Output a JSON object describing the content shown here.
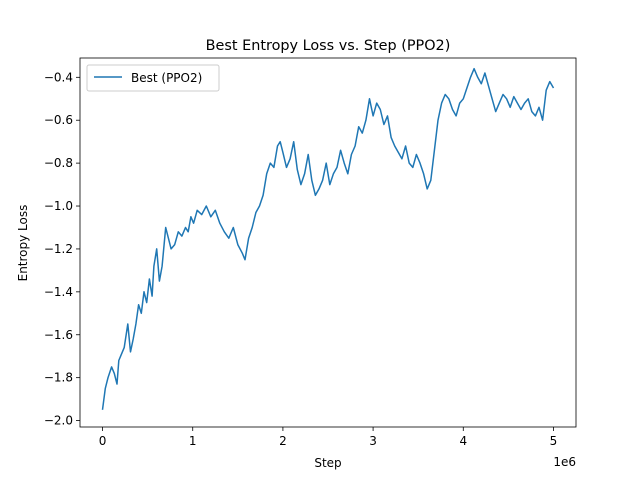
{
  "chart_data": {
    "type": "line",
    "title": "Best Entropy Loss vs. Step (PPO2)",
    "xlabel": "Step",
    "ylabel": "Entropy Loss",
    "x_offset_label": "1e6",
    "xlim": [
      -0.25,
      5.25
    ],
    "ylim": [
      -2.03,
      -0.31
    ],
    "x_ticks": [
      0,
      1,
      2,
      3,
      4,
      5
    ],
    "x_tick_labels": [
      "0",
      "1",
      "2",
      "3",
      "4",
      "5"
    ],
    "y_ticks": [
      -2.0,
      -1.8,
      -1.6,
      -1.4,
      -1.2,
      -1.0,
      -0.8,
      -0.6,
      -0.4
    ],
    "y_tick_labels": [
      "−2.0",
      "−1.8",
      "−1.6",
      "−1.4",
      "−1.2",
      "−1.0",
      "−0.8",
      "−0.6",
      "−0.4"
    ],
    "grid": false,
    "legend_position": "top-left",
    "series": [
      {
        "name": "Best (PPO2)",
        "color": "#1f77b4",
        "x": [
          0.0,
          0.03,
          0.06,
          0.1,
          0.13,
          0.16,
          0.18,
          0.2,
          0.24,
          0.28,
          0.31,
          0.34,
          0.37,
          0.4,
          0.43,
          0.46,
          0.49,
          0.52,
          0.55,
          0.57,
          0.6,
          0.63,
          0.66,
          0.7,
          0.73,
          0.76,
          0.8,
          0.84,
          0.88,
          0.92,
          0.95,
          0.98,
          1.01,
          1.05,
          1.1,
          1.15,
          1.2,
          1.25,
          1.3,
          1.35,
          1.4,
          1.45,
          1.5,
          1.55,
          1.58,
          1.62,
          1.66,
          1.7,
          1.74,
          1.78,
          1.82,
          1.86,
          1.9,
          1.94,
          1.97,
          2.0,
          2.04,
          2.08,
          2.12,
          2.16,
          2.2,
          2.24,
          2.28,
          2.32,
          2.36,
          2.4,
          2.44,
          2.48,
          2.52,
          2.56,
          2.6,
          2.64,
          2.68,
          2.72,
          2.76,
          2.8,
          2.84,
          2.88,
          2.92,
          2.96,
          3.0,
          3.04,
          3.08,
          3.12,
          3.16,
          3.2,
          3.24,
          3.28,
          3.32,
          3.36,
          3.4,
          3.44,
          3.48,
          3.52,
          3.56,
          3.6,
          3.64,
          3.68,
          3.72,
          3.76,
          3.8,
          3.84,
          3.88,
          3.92,
          3.96,
          4.0,
          4.04,
          4.08,
          4.12,
          4.16,
          4.2,
          4.24,
          4.28,
          4.32,
          4.36,
          4.4,
          4.44,
          4.48,
          4.52,
          4.56,
          4.6,
          4.64,
          4.68,
          4.72,
          4.76,
          4.8,
          4.84,
          4.88,
          4.92,
          4.96,
          5.0
        ],
        "y": [
          -1.95,
          -1.85,
          -1.8,
          -1.75,
          -1.78,
          -1.83,
          -1.72,
          -1.7,
          -1.66,
          -1.55,
          -1.68,
          -1.62,
          -1.55,
          -1.46,
          -1.5,
          -1.4,
          -1.45,
          -1.34,
          -1.42,
          -1.28,
          -1.2,
          -1.35,
          -1.28,
          -1.1,
          -1.15,
          -1.2,
          -1.18,
          -1.12,
          -1.14,
          -1.1,
          -1.12,
          -1.05,
          -1.08,
          -1.02,
          -1.04,
          -1.0,
          -1.05,
          -1.02,
          -1.08,
          -1.12,
          -1.15,
          -1.1,
          -1.18,
          -1.22,
          -1.25,
          -1.15,
          -1.1,
          -1.03,
          -1.0,
          -0.95,
          -0.85,
          -0.8,
          -0.82,
          -0.72,
          -0.7,
          -0.75,
          -0.82,
          -0.78,
          -0.7,
          -0.83,
          -0.9,
          -0.85,
          -0.76,
          -0.88,
          -0.95,
          -0.92,
          -0.88,
          -0.8,
          -0.9,
          -0.85,
          -0.82,
          -0.74,
          -0.8,
          -0.85,
          -0.76,
          -0.72,
          -0.63,
          -0.66,
          -0.6,
          -0.5,
          -0.58,
          -0.52,
          -0.55,
          -0.62,
          -0.58,
          -0.68,
          -0.72,
          -0.75,
          -0.78,
          -0.72,
          -0.8,
          -0.82,
          -0.76,
          -0.8,
          -0.85,
          -0.92,
          -0.88,
          -0.74,
          -0.6,
          -0.52,
          -0.48,
          -0.5,
          -0.55,
          -0.58,
          -0.52,
          -0.5,
          -0.45,
          -0.4,
          -0.36,
          -0.4,
          -0.43,
          -0.38,
          -0.44,
          -0.5,
          -0.56,
          -0.52,
          -0.48,
          -0.5,
          -0.54,
          -0.49,
          -0.52,
          -0.55,
          -0.52,
          -0.5,
          -0.56,
          -0.58,
          -0.54,
          -0.6,
          -0.46,
          -0.42,
          -0.45
        ]
      }
    ]
  }
}
